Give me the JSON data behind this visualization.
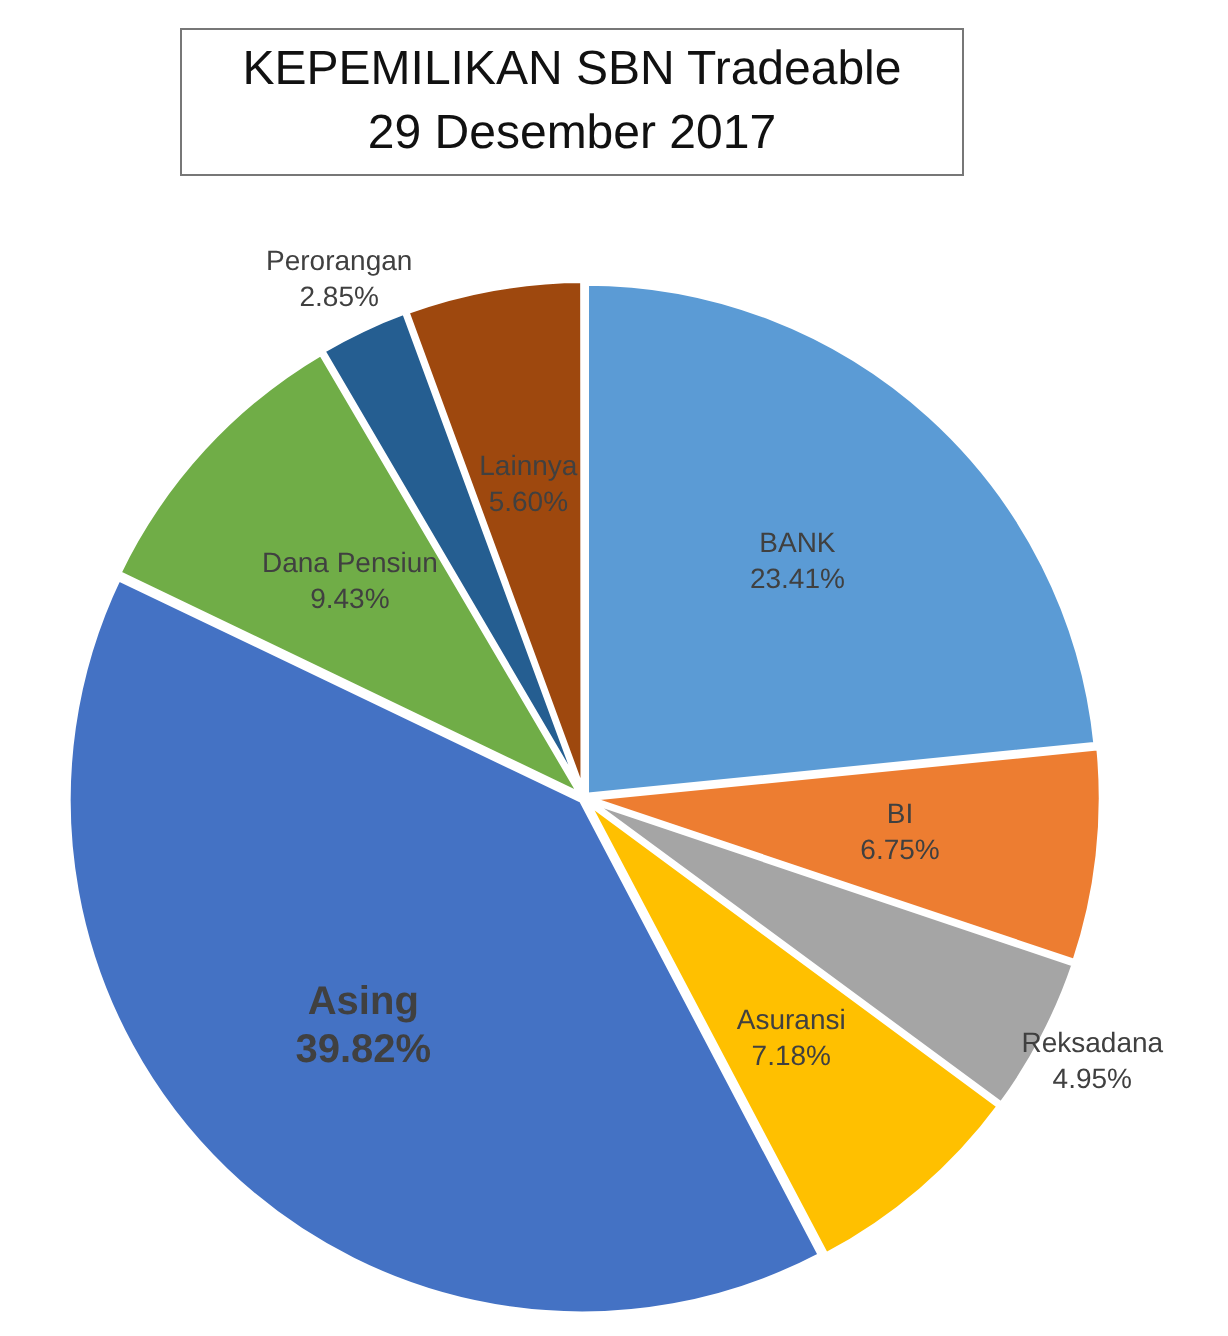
{
  "chart_data": {
    "type": "pie",
    "title": "KEPEMILIKAN SBN Tradeable\n29 Desember 2017",
    "categories": [
      "BANK",
      "BI",
      "Reksadana",
      "Asuransi",
      "Asing",
      "Dana Pensiun",
      "Perorangan",
      "Lainnya"
    ],
    "values": [
      23.41,
      6.75,
      4.95,
      7.18,
      39.82,
      9.43,
      2.85,
      5.6
    ],
    "value_labels": [
      "23.41%",
      "6.75%",
      "4.95%",
      "7.18%",
      "39.82%",
      "9.43%",
      "2.85%",
      "5.60%"
    ],
    "colors": [
      "#5b9bd5",
      "#ed7d31",
      "#a5a5a5",
      "#ffc000",
      "#4472c4",
      "#70ad47",
      "#255e91",
      "#9e480e"
    ],
    "legend": false
  }
}
